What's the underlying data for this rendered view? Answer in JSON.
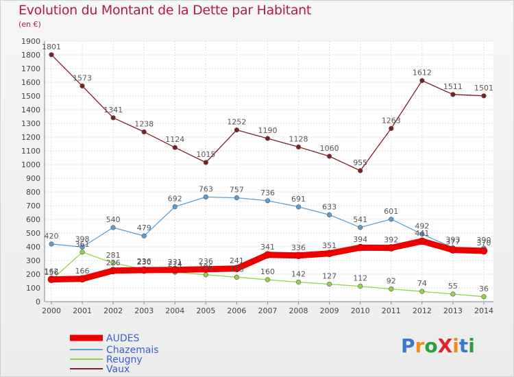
{
  "title": "Evolution du Montant de la Dette par Habitant",
  "subtitle": "(en €)",
  "logo": {
    "text": "ProXiti",
    "letters": [
      "P",
      "r",
      "o",
      "X",
      "i",
      "t",
      "i"
    ],
    "colors": [
      "#3a78c8",
      "#f08a1c",
      "#2e9e3c",
      "#e0262c",
      "#f08a1c",
      "#3a78c8",
      "#2e9e3c"
    ]
  },
  "chart_data": {
    "type": "line",
    "categories": [
      "2000",
      "2001",
      "2002",
      "2003",
      "2004",
      "2005",
      "2006",
      "2007",
      "2008",
      "2009",
      "2010",
      "2011",
      "2012",
      "2013",
      "2014"
    ],
    "y_ticks": [
      "0",
      "100",
      "200",
      "300",
      "400",
      "500",
      "600",
      "700",
      "800",
      "900",
      "1000",
      "1100",
      "1200",
      "1300",
      "1400",
      "1500",
      "1600",
      "1700",
      "1800",
      "1900"
    ],
    "ylim": [
      0,
      1900
    ],
    "grid": true,
    "legend_placement": "bottom-left",
    "series": [
      {
        "name": "AUDES",
        "color": "#ee0000",
        "values": [
          162,
          166,
          226,
          230,
          231,
          236,
          241,
          341,
          336,
          351,
          394,
          392,
          441,
          377,
          370
        ],
        "labels": [
          "162",
          "166",
          "226",
          "230",
          "231",
          "236",
          "241",
          "341",
          "336",
          "351",
          "394",
          "392",
          "441",
          "377",
          "370"
        ]
      },
      {
        "name": "Chazemais",
        "color": "#5a9fd4",
        "values": [
          420,
          398,
          540,
          479,
          692,
          763,
          757,
          736,
          691,
          633,
          541,
          601,
          492,
          393,
          390
        ],
        "labels": [
          "420",
          "398",
          "540",
          "479",
          "692",
          "763",
          "757",
          "736",
          "691",
          "633",
          "541",
          "601",
          "492",
          "393",
          "390"
        ]
      },
      {
        "name": "Reugny",
        "color": "#8fd44a",
        "values": [
          156,
          361,
          281,
          236,
          214,
          196,
          178,
          160,
          142,
          127,
          112,
          92,
          74,
          55,
          36
        ],
        "labels": [
          "156",
          "361",
          "281",
          "236",
          "214",
          "196",
          "178",
          "160",
          "142",
          "127",
          "112",
          "92",
          "74",
          "55",
          "36"
        ]
      },
      {
        "name": "Vaux",
        "color": "#7a1f22",
        "values": [
          1801,
          1573,
          1341,
          1238,
          1124,
          1015,
          1252,
          1190,
          1128,
          1060,
          955,
          1263,
          1612,
          1511,
          1501
        ],
        "labels": [
          "1801",
          "1573",
          "1341",
          "1238",
          "1124",
          "1015",
          "1252",
          "1190",
          "1128",
          "1060",
          "955",
          "1263",
          "1612",
          "1511",
          "1501"
        ]
      }
    ]
  }
}
